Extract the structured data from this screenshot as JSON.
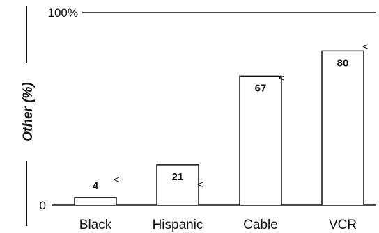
{
  "chart_data": {
    "type": "bar",
    "ylabel": "Other (%)",
    "categories": [
      "Black",
      "Hispanic",
      "Cable",
      "VCR"
    ],
    "values": [
      4,
      21,
      67,
      80
    ],
    "value_labels": [
      "4",
      "21",
      "67",
      "80"
    ],
    "ylim": [
      0,
      100
    ],
    "yticks": [
      {
        "value": 0,
        "label": "0"
      },
      {
        "value": 100,
        "label": "100%"
      }
    ],
    "grid": false,
    "legend": "none",
    "bar_fill": "#ffffff",
    "stroke": "#111111"
  }
}
